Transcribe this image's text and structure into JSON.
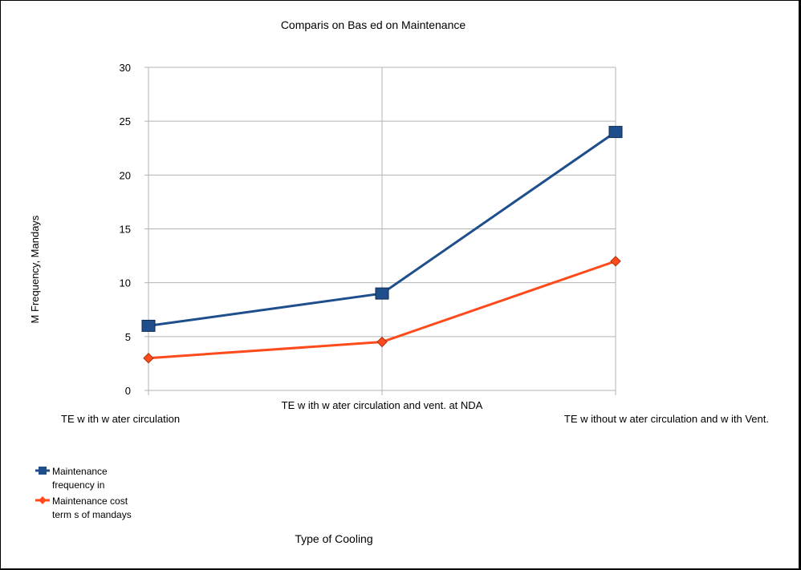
{
  "chart_data": {
    "type": "line",
    "title": "Comparis on Bas ed on Maintenance",
    "xlabel": "Type of Cooling",
    "ylabel": "M Frequency, Mandays",
    "categories": [
      "TE w ith w ater circulation",
      "TE w ith w ater circulation and vent. at NDA",
      "TE w ithout w ater circulation and w ith Vent."
    ],
    "series": [
      {
        "name": "Maintenance frequency in",
        "values": [
          6,
          9,
          24
        ],
        "color": "#1f4e8c",
        "marker": "square"
      },
      {
        "name": "Maintenance cost term of mandays",
        "values": [
          3,
          4.5,
          12
        ],
        "color": "#ff4a1c",
        "marker": "diamond"
      }
    ],
    "legend_lines": [
      [
        "Maintenance",
        "frequency in"
      ],
      [
        "Maintenance cost",
        "term s of mandays"
      ]
    ],
    "ylim": [
      0,
      30
    ],
    "yticks": [
      0,
      5,
      10,
      15,
      20,
      25,
      30
    ],
    "grid": true,
    "legend_position": "bottom-left"
  }
}
